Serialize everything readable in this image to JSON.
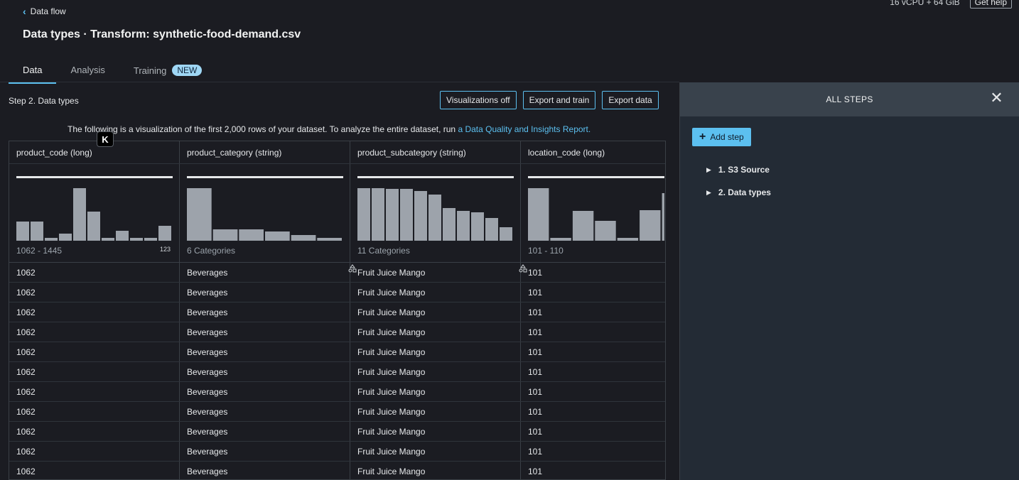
{
  "top": {
    "resource": "16 vCPU + 64 GiB",
    "help_label": "Get help"
  },
  "back_label": "Data flow",
  "title": "Data types · Transform: synthetic-food-demand.csv",
  "tabs": [
    {
      "label": "Data"
    },
    {
      "label": "Analysis"
    },
    {
      "label": "Training",
      "badge": "NEW"
    }
  ],
  "step_title": "Step 2. Data types",
  "actions": {
    "viz_off": "Visualizations off",
    "export_train": "Export and train",
    "export_data": "Export data"
  },
  "info": {
    "text": "The following is a visualization of the first 2,000 rows of your dataset. To analyze the entire dataset, run",
    "link": "a Data Quality and Insights Report."
  },
  "k_badge": "K",
  "columns": [
    {
      "header": "product_code (long)",
      "summary": "1062 - 1445",
      "icon": "123",
      "hist": [
        0.36,
        0.36,
        0.05,
        0.14,
        1.0,
        0.55,
        0.05,
        0.19,
        0.06,
        0.06,
        0.28
      ]
    },
    {
      "header": "product_category (string)",
      "summary": "6 Categories",
      "icon": "shapes",
      "hist": [
        1.0,
        0.21,
        0.21,
        0.17,
        0.11,
        0.06
      ]
    },
    {
      "header": "product_subcategory (string)",
      "summary": "11 Categories",
      "icon": "shapes",
      "hist": [
        1.0,
        1.0,
        0.99,
        0.98,
        0.95,
        0.88,
        0.62,
        0.57,
        0.54,
        0.43,
        0.25
      ]
    },
    {
      "header": "location_code (long)",
      "summary": "101 - 110",
      "icon": "",
      "hist": [
        1.0,
        0.06,
        0.57,
        0.38,
        0.06,
        0.58,
        0.9
      ]
    }
  ],
  "rows": [
    [
      "1062",
      "Beverages",
      "Fruit Juice Mango",
      "101"
    ],
    [
      "1062",
      "Beverages",
      "Fruit Juice Mango",
      "101"
    ],
    [
      "1062",
      "Beverages",
      "Fruit Juice Mango",
      "101"
    ],
    [
      "1062",
      "Beverages",
      "Fruit Juice Mango",
      "101"
    ],
    [
      "1062",
      "Beverages",
      "Fruit Juice Mango",
      "101"
    ],
    [
      "1062",
      "Beverages",
      "Fruit Juice Mango",
      "101"
    ],
    [
      "1062",
      "Beverages",
      "Fruit Juice Mango",
      "101"
    ],
    [
      "1062",
      "Beverages",
      "Fruit Juice Mango",
      "101"
    ],
    [
      "1062",
      "Beverages",
      "Fruit Juice Mango",
      "101"
    ],
    [
      "1062",
      "Beverages",
      "Fruit Juice Mango",
      "101"
    ],
    [
      "1062",
      "Beverages",
      "Fruit Juice Mango",
      "101"
    ]
  ],
  "panel": {
    "title": "ALL STEPS",
    "add_step": "Add step",
    "steps": [
      "1. S3 Source",
      "2. Data types"
    ]
  },
  "colors": {
    "accent": "#5cc0f0",
    "bar": "#9da3ab"
  }
}
